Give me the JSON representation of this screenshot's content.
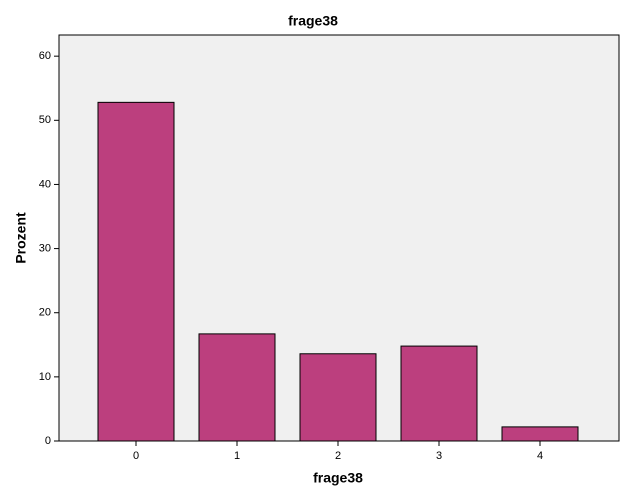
{
  "chart_data": {
    "type": "bar",
    "title": "frage38",
    "x_label": "frage38",
    "y_label": "Prozent",
    "categories": [
      "0",
      "1",
      "2",
      "3",
      "4"
    ],
    "values": [
      52.8,
      16.7,
      13.6,
      14.8,
      2.2
    ],
    "color": "#bc3f7e",
    "ylim": [
      0,
      63.3
    ],
    "yticks": [
      0,
      10,
      20,
      30,
      40,
      50,
      60
    ],
    "grid": false
  }
}
